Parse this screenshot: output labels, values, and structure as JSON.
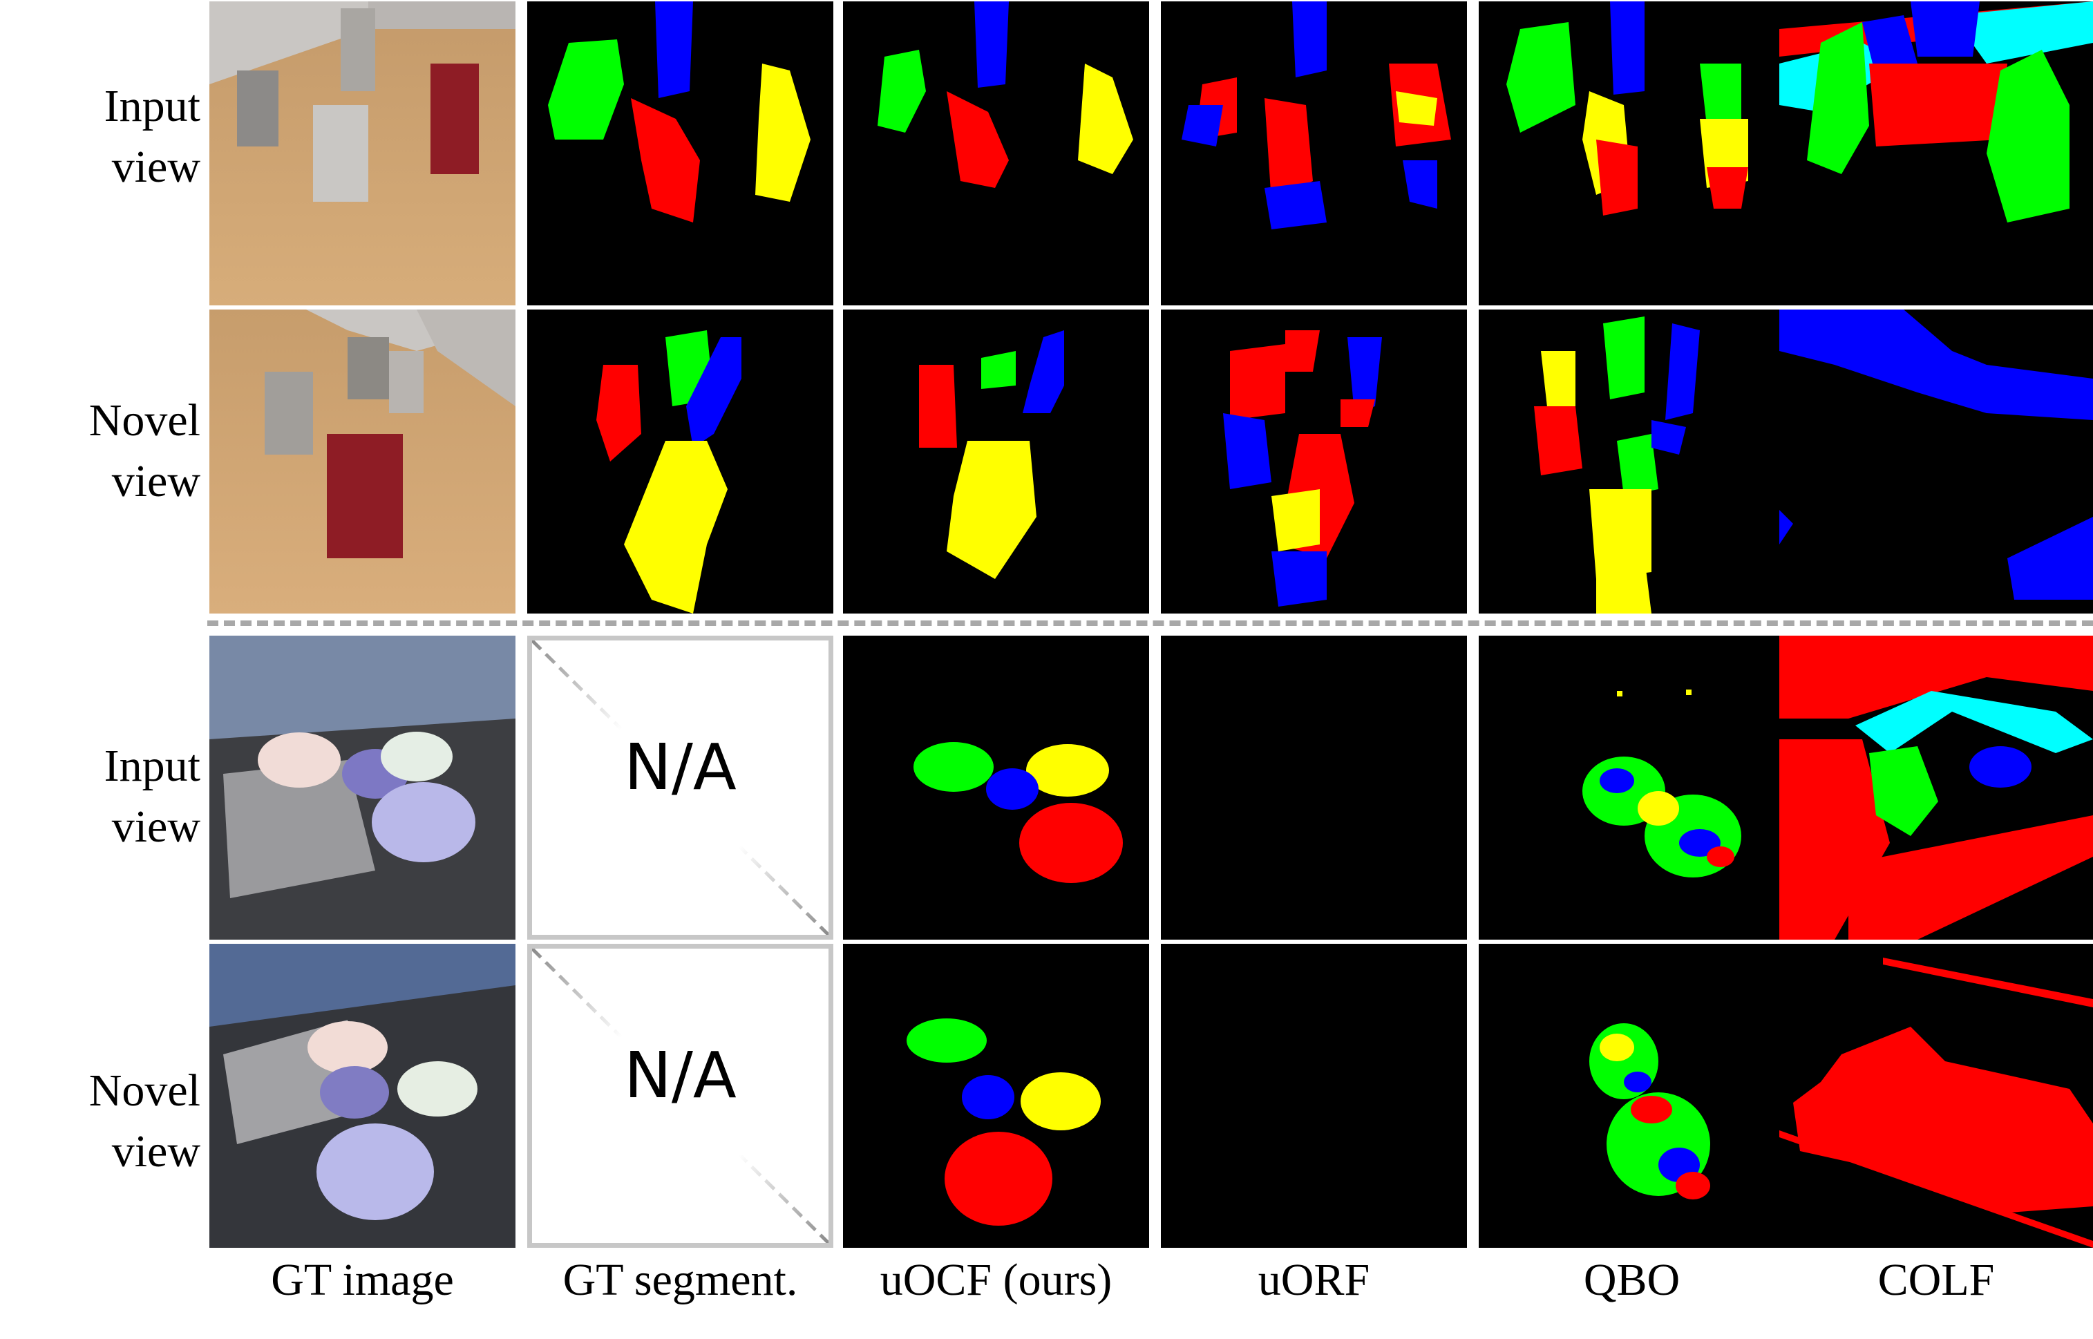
{
  "row_labels": [
    {
      "line1": "Input",
      "line2": "view"
    },
    {
      "line1": "Novel",
      "line2": "view"
    },
    {
      "line1": "Input",
      "line2": "view"
    },
    {
      "line1": "Novel",
      "line2": "view"
    }
  ],
  "column_labels": [
    "GT image",
    "GT segment.",
    "uOCF (ours)",
    "uORF",
    "QBO",
    "COLF"
  ],
  "na_text": "N/A",
  "colors": {
    "background": "#000000",
    "red": "#ff0000",
    "green": "#00ff00",
    "blue": "#0000ff",
    "yellow": "#ffff00",
    "cyan": "#00ffff",
    "divider": "#a8a8a8"
  }
}
